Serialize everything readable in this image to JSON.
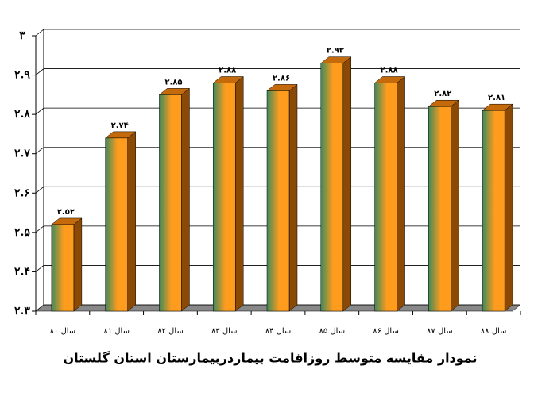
{
  "chart_data": {
    "type": "bar3d",
    "title": "نمودار مقایسه متوسط روزاقامت بیماردربیمارستان استان گلستان",
    "categories": [
      "سال ۸۰",
      "سال ۸۱",
      "سال ۸۲",
      "سال ۸۳",
      "سال ۸۴",
      "سال ۸۵",
      "سال ۸۶",
      "سال ۸۷",
      "سال ۸۸"
    ],
    "values": [
      2.52,
      2.74,
      2.85,
      2.88,
      2.86,
      2.93,
      2.88,
      2.82,
      2.81
    ],
    "value_labels": [
      "۲.۵۲",
      "۲.۷۴",
      "۲.۸۵",
      "۲.۸۸",
      "۲.۸۶",
      "۲.۹۳",
      "۲.۸۸",
      "۲.۸۲",
      "۲.۸۱"
    ],
    "color": "#ff9c1e",
    "ylim": [
      2.3,
      3
    ],
    "yticks": [
      {
        "value": 2.3,
        "label": "۲.۳"
      },
      {
        "value": 2.4,
        "label": "۲.۴"
      },
      {
        "value": 2.5,
        "label": "۲.۵"
      },
      {
        "value": 2.6,
        "label": "۲.۶"
      },
      {
        "value": 2.7,
        "label": "۲.۷"
      },
      {
        "value": 2.8,
        "label": "۲.۸"
      },
      {
        "value": 2.9,
        "label": "۲.۹"
      },
      {
        "value": 3,
        "label": "۳"
      }
    ],
    "grid": true
  }
}
